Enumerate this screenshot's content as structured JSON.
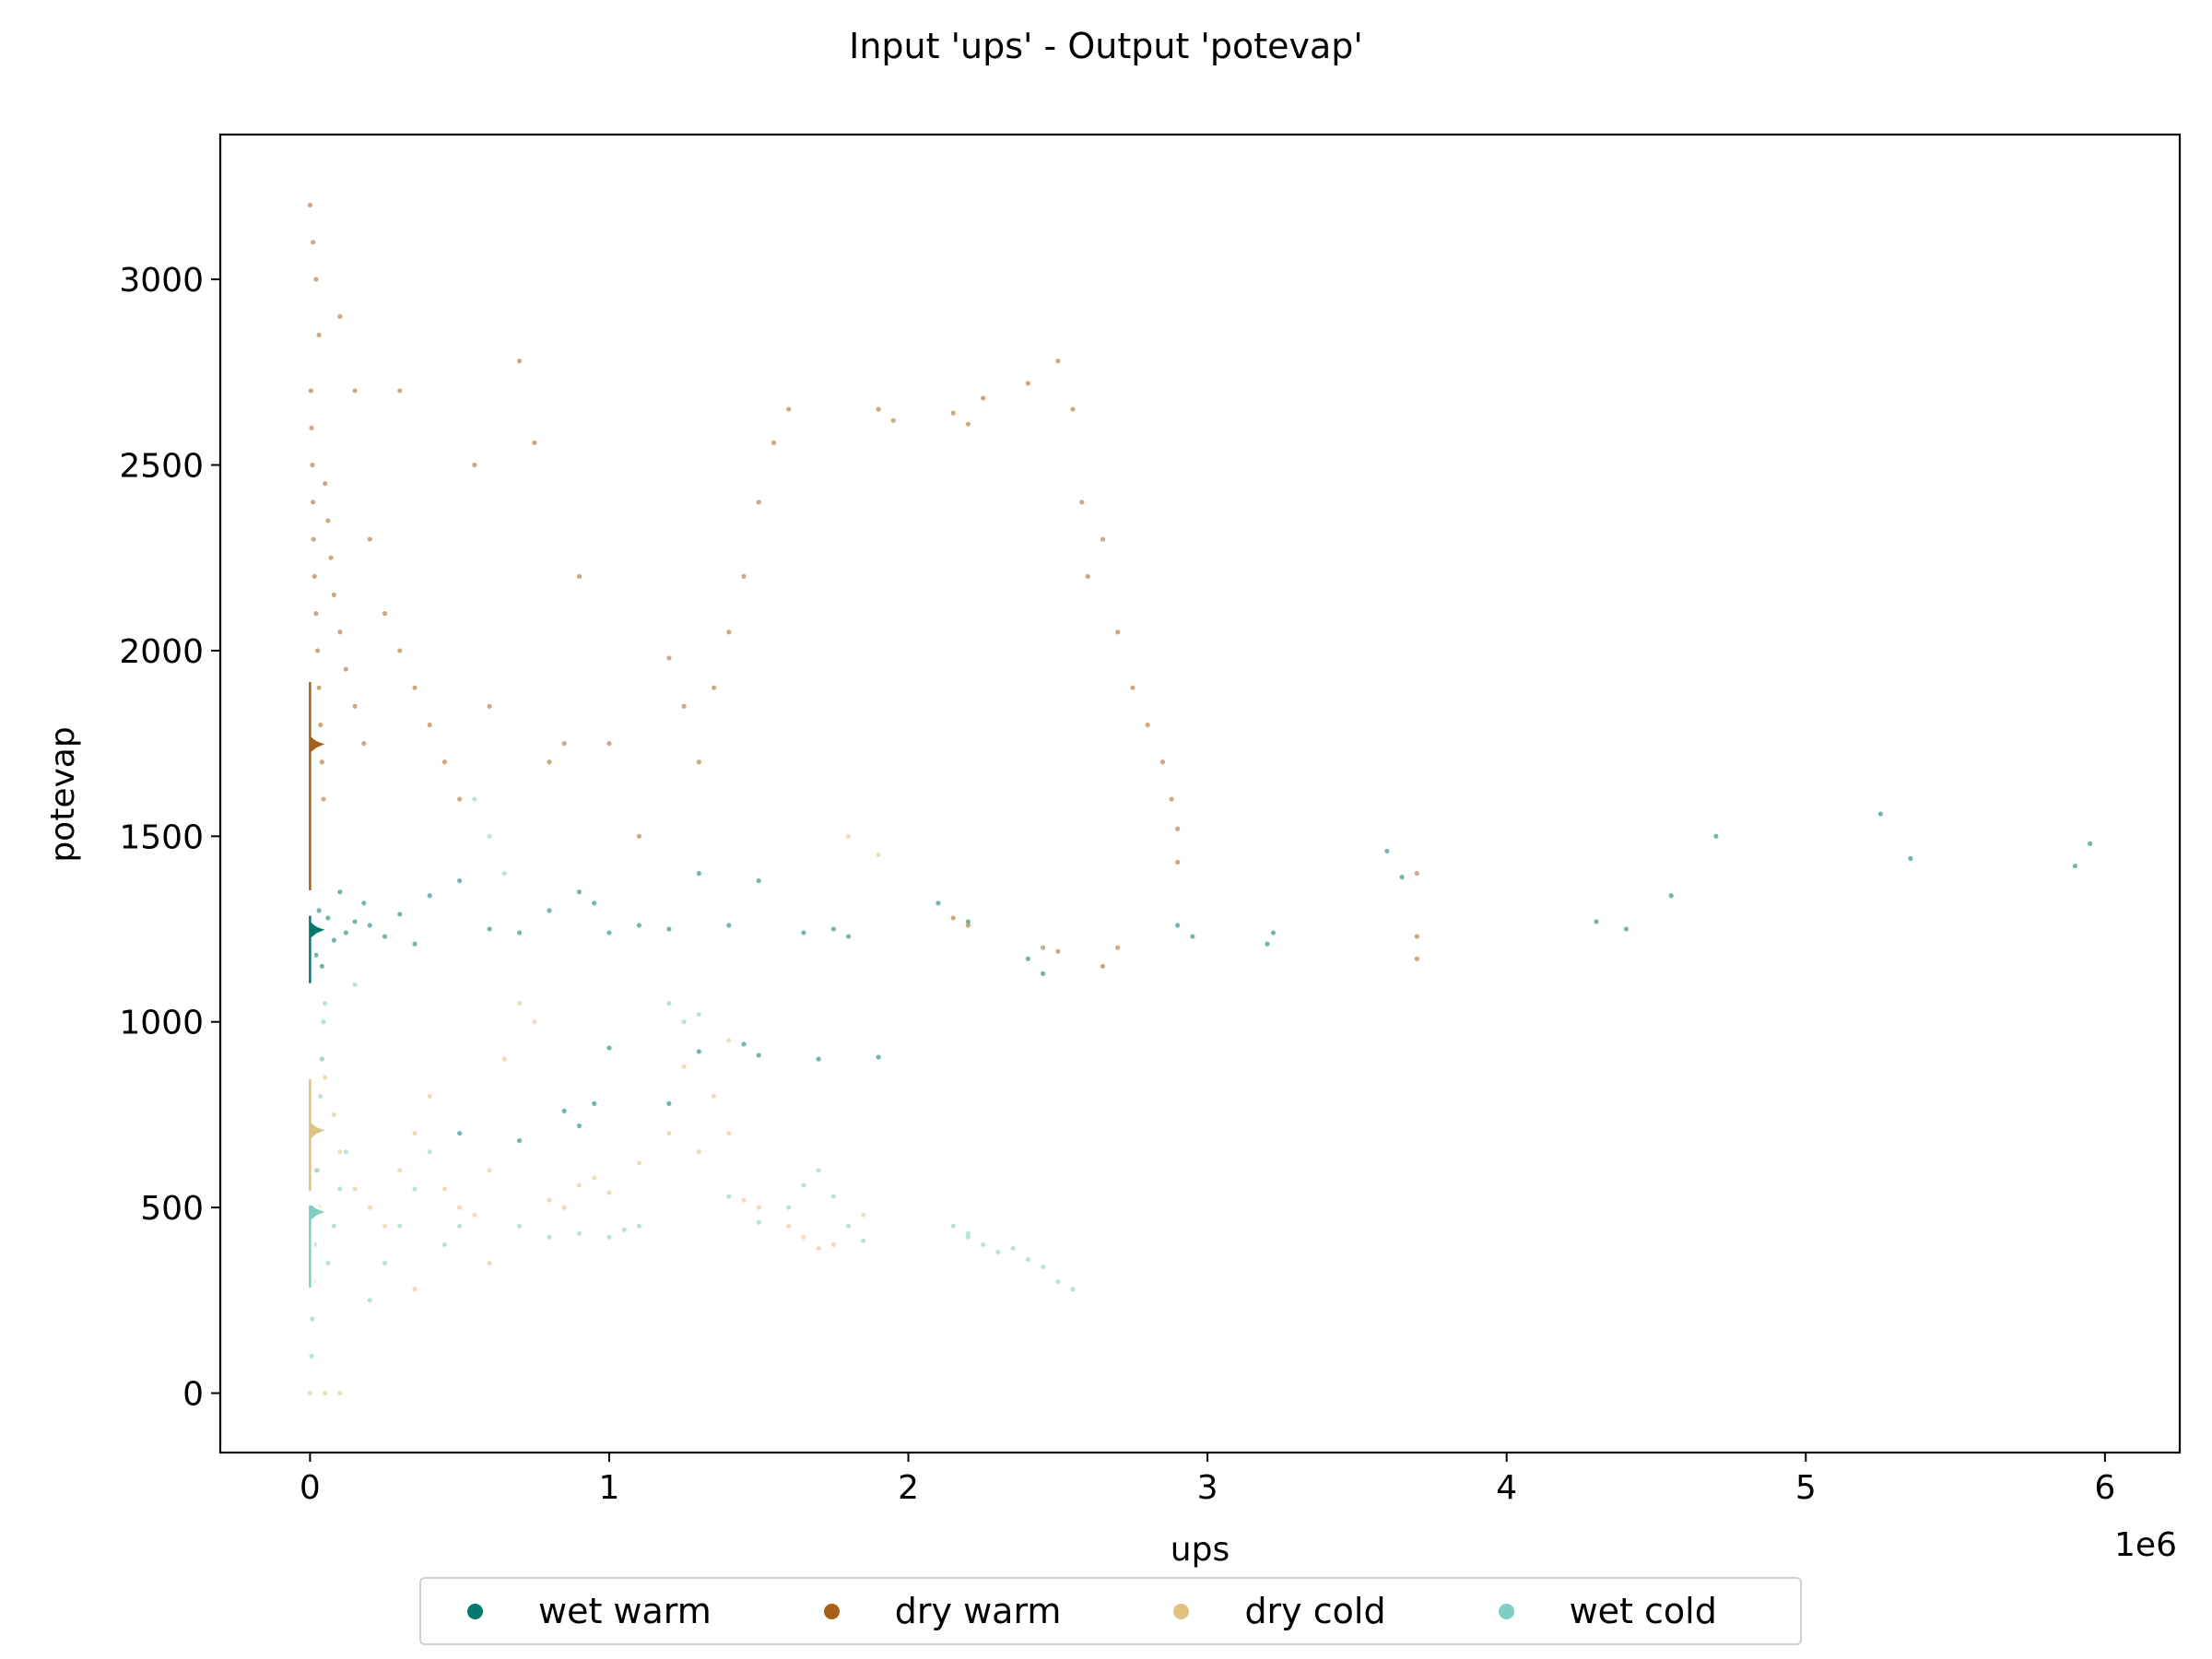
{
  "chart_data": {
    "type": "scatter",
    "title": "Input 'ups' - Output 'potevap'",
    "xlabel": "ups",
    "ylabel": "potevap",
    "x_offset_label": "1e6",
    "xlim": [
      -300000,
      6250000
    ],
    "ylim": [
      -160,
      3390
    ],
    "xticks": [
      0,
      1000000,
      2000000,
      3000000,
      4000000,
      5000000,
      6000000
    ],
    "xtick_labels": [
      "0",
      "1",
      "2",
      "3",
      "4",
      "5",
      "6"
    ],
    "yticks": [
      0,
      500,
      1000,
      1500,
      2000,
      2500,
      3000
    ],
    "ytick_labels": [
      "0",
      "500",
      "1000",
      "1500",
      "2000",
      "2500",
      "3000"
    ],
    "legend_position": "bottom-center",
    "grid": false,
    "series": [
      {
        "name": "wet warm",
        "color": "#01796f",
        "points": [
          [
            5000,
            1200
          ],
          [
            10000,
            1250
          ],
          [
            20000,
            1180
          ],
          [
            30000,
            1300
          ],
          [
            40000,
            1150
          ],
          [
            60000,
            1280
          ],
          [
            80000,
            1220
          ],
          [
            100000,
            1350
          ],
          [
            120000,
            1240
          ],
          [
            150000,
            1270
          ],
          [
            180000,
            1320
          ],
          [
            200000,
            1260
          ],
          [
            250000,
            1230
          ],
          [
            300000,
            1290
          ],
          [
            350000,
            1210
          ],
          [
            400000,
            1340
          ],
          [
            500000,
            1380
          ],
          [
            600000,
            1250
          ],
          [
            700000,
            1240
          ],
          [
            800000,
            1300
          ],
          [
            900000,
            1350
          ],
          [
            950000,
            1320
          ],
          [
            1000000,
            1240
          ],
          [
            1100000,
            1260
          ],
          [
            1200000,
            1250
          ],
          [
            1300000,
            1400
          ],
          [
            1400000,
            1260
          ],
          [
            1500000,
            1380
          ],
          [
            1650000,
            1240
          ],
          [
            1750000,
            1250
          ],
          [
            1800000,
            1230
          ],
          [
            2100000,
            1320
          ],
          [
            2200000,
            1270
          ],
          [
            2400000,
            1170
          ],
          [
            2450000,
            1130
          ],
          [
            2900000,
            1260
          ],
          [
            2950000,
            1230
          ],
          [
            3200000,
            1210
          ],
          [
            3220000,
            1240
          ],
          [
            3600000,
            1460
          ],
          [
            3650000,
            1390
          ],
          [
            4300000,
            1270
          ],
          [
            4400000,
            1250
          ],
          [
            4550000,
            1340
          ],
          [
            4700000,
            1500
          ],
          [
            5250000,
            1560
          ],
          [
            5350000,
            1440
          ],
          [
            5900000,
            1420
          ],
          [
            5950000,
            1480
          ],
          [
            900000,
            720
          ],
          [
            950000,
            780
          ],
          [
            1000000,
            930
          ],
          [
            1300000,
            920
          ],
          [
            1450000,
            940
          ],
          [
            1500000,
            910
          ],
          [
            1700000,
            900
          ],
          [
            1900000,
            905
          ],
          [
            500000,
            700
          ],
          [
            700000,
            680
          ],
          [
            850000,
            760
          ],
          [
            1200000,
            780
          ]
        ]
      },
      {
        "name": "dry warm",
        "color": "#a6611a",
        "points": [
          [
            3000,
            2700
          ],
          [
            5000,
            2600
          ],
          [
            8000,
            2500
          ],
          [
            10000,
            2400
          ],
          [
            12000,
            2300
          ],
          [
            15000,
            2200
          ],
          [
            20000,
            2100
          ],
          [
            25000,
            2000
          ],
          [
            30000,
            1900
          ],
          [
            35000,
            1800
          ],
          [
            40000,
            1700
          ],
          [
            45000,
            1600
          ],
          [
            50000,
            2450
          ],
          [
            60000,
            2350
          ],
          [
            70000,
            2250
          ],
          [
            80000,
            2150
          ],
          [
            100000,
            2050
          ],
          [
            120000,
            1950
          ],
          [
            150000,
            1850
          ],
          [
            180000,
            1750
          ],
          [
            200000,
            2300
          ],
          [
            250000,
            2100
          ],
          [
            300000,
            2000
          ],
          [
            350000,
            1900
          ],
          [
            400000,
            1800
          ],
          [
            450000,
            1700
          ],
          [
            500000,
            1600
          ],
          [
            550000,
            2500
          ],
          [
            600000,
            1850
          ],
          [
            700000,
            2780
          ],
          [
            750000,
            2560
          ],
          [
            800000,
            1700
          ],
          [
            850000,
            1750
          ],
          [
            900000,
            2200
          ],
          [
            1000000,
            1750
          ],
          [
            1100000,
            1500
          ],
          [
            1200000,
            1980
          ],
          [
            1250000,
            1850
          ],
          [
            1300000,
            1700
          ],
          [
            1350000,
            1900
          ],
          [
            1400000,
            2050
          ],
          [
            1450000,
            2200
          ],
          [
            1500000,
            2400
          ],
          [
            1550000,
            2560
          ],
          [
            1600000,
            2650
          ],
          [
            1900000,
            2650
          ],
          [
            1950000,
            2620
          ],
          [
            2150000,
            2640
          ],
          [
            2200000,
            2610
          ],
          [
            2250000,
            2680
          ],
          [
            2400000,
            2720
          ],
          [
            2500000,
            2780
          ],
          [
            2550000,
            2650
          ],
          [
            2580000,
            2400
          ],
          [
            2600000,
            2200
          ],
          [
            2650000,
            2300
          ],
          [
            2700000,
            2050
          ],
          [
            2750000,
            1900
          ],
          [
            2800000,
            1800
          ],
          [
            2850000,
            1700
          ],
          [
            2880000,
            1600
          ],
          [
            2900000,
            1520
          ],
          [
            2900000,
            1430
          ],
          [
            2150000,
            1280
          ],
          [
            2200000,
            1260
          ],
          [
            2450000,
            1200
          ],
          [
            2500000,
            1190
          ],
          [
            3700000,
            1230
          ],
          [
            3700000,
            1170
          ],
          [
            3700000,
            1400
          ],
          [
            2650000,
            1150
          ],
          [
            2700000,
            1200
          ],
          [
            20000,
            3000
          ],
          [
            10000,
            3100
          ],
          [
            0,
            3200
          ],
          [
            30000,
            2850
          ],
          [
            150000,
            2700
          ],
          [
            300000,
            2700
          ],
          [
            100000,
            2900
          ]
        ]
      },
      {
        "name": "dry cold",
        "color": "#dfc27d",
        "points": [
          [
            5000,
            800
          ],
          [
            10000,
            700
          ],
          [
            20000,
            600
          ],
          [
            30000,
            500
          ],
          [
            40000,
            900
          ],
          [
            50000,
            850
          ],
          [
            80000,
            750
          ],
          [
            100000,
            650
          ],
          [
            150000,
            550
          ],
          [
            200000,
            500
          ],
          [
            250000,
            450
          ],
          [
            300000,
            600
          ],
          [
            350000,
            700
          ],
          [
            400000,
            800
          ],
          [
            450000,
            550
          ],
          [
            500000,
            500
          ],
          [
            550000,
            480
          ],
          [
            600000,
            600
          ],
          [
            650000,
            900
          ],
          [
            700000,
            1050
          ],
          [
            750000,
            1000
          ],
          [
            800000,
            520
          ],
          [
            850000,
            500
          ],
          [
            900000,
            560
          ],
          [
            950000,
            580
          ],
          [
            1000000,
            540
          ],
          [
            1100000,
            620
          ],
          [
            1200000,
            700
          ],
          [
            1250000,
            880
          ],
          [
            1300000,
            650
          ],
          [
            1350000,
            800
          ],
          [
            1400000,
            950
          ],
          [
            1450000,
            520
          ],
          [
            1500000,
            500
          ],
          [
            1600000,
            450
          ],
          [
            1650000,
            420
          ],
          [
            1700000,
            390
          ],
          [
            1750000,
            400
          ],
          [
            1800000,
            1500
          ],
          [
            1900000,
            1450
          ],
          [
            1850000,
            480
          ],
          [
            1400000,
            700
          ],
          [
            600000,
            350
          ],
          [
            350000,
            280
          ],
          [
            0,
            0
          ],
          [
            50000,
            0
          ],
          [
            100000,
            0
          ]
        ]
      },
      {
        "name": "wet cold",
        "color": "#80cdc1",
        "points": [
          [
            5000,
            100
          ],
          [
            8000,
            200
          ],
          [
            10000,
            300
          ],
          [
            15000,
            400
          ],
          [
            20000,
            500
          ],
          [
            25000,
            600
          ],
          [
            30000,
            700
          ],
          [
            35000,
            800
          ],
          [
            40000,
            900
          ],
          [
            45000,
            1000
          ],
          [
            50000,
            1050
          ],
          [
            60000,
            350
          ],
          [
            80000,
            450
          ],
          [
            100000,
            550
          ],
          [
            120000,
            650
          ],
          [
            150000,
            1100
          ],
          [
            200000,
            250
          ],
          [
            250000,
            350
          ],
          [
            300000,
            450
          ],
          [
            350000,
            550
          ],
          [
            400000,
            650
          ],
          [
            450000,
            400
          ],
          [
            500000,
            450
          ],
          [
            550000,
            1600
          ],
          [
            600000,
            1500
          ],
          [
            650000,
            1400
          ],
          [
            700000,
            450
          ],
          [
            800000,
            420
          ],
          [
            900000,
            430
          ],
          [
            1000000,
            420
          ],
          [
            1050000,
            440
          ],
          [
            1100000,
            450
          ],
          [
            1200000,
            1050
          ],
          [
            1250000,
            1000
          ],
          [
            1300000,
            1020
          ],
          [
            1400000,
            530
          ],
          [
            1500000,
            460
          ],
          [
            1600000,
            500
          ],
          [
            1650000,
            560
          ],
          [
            1700000,
            600
          ],
          [
            1750000,
            530
          ],
          [
            1800000,
            450
          ],
          [
            1850000,
            410
          ],
          [
            2150000,
            450
          ],
          [
            2200000,
            420
          ],
          [
            2250000,
            400
          ],
          [
            2300000,
            380
          ],
          [
            2400000,
            360
          ],
          [
            2450000,
            340
          ],
          [
            2500000,
            300
          ],
          [
            2550000,
            280
          ],
          [
            2200000,
            430
          ],
          [
            2350000,
            390
          ]
        ]
      }
    ],
    "contours": [
      {
        "series": "dry warm",
        "y_range": [
          1350,
          1920
        ],
        "peak": 1750
      },
      {
        "series": "wet warm",
        "y_range": [
          1100,
          1290
        ],
        "peak": 1250
      },
      {
        "series": "dry cold",
        "y_range": [
          540,
          850
        ],
        "peak": 710
      },
      {
        "series": "wet cold",
        "y_range": [
          280,
          510
        ],
        "peak": 490
      }
    ]
  }
}
